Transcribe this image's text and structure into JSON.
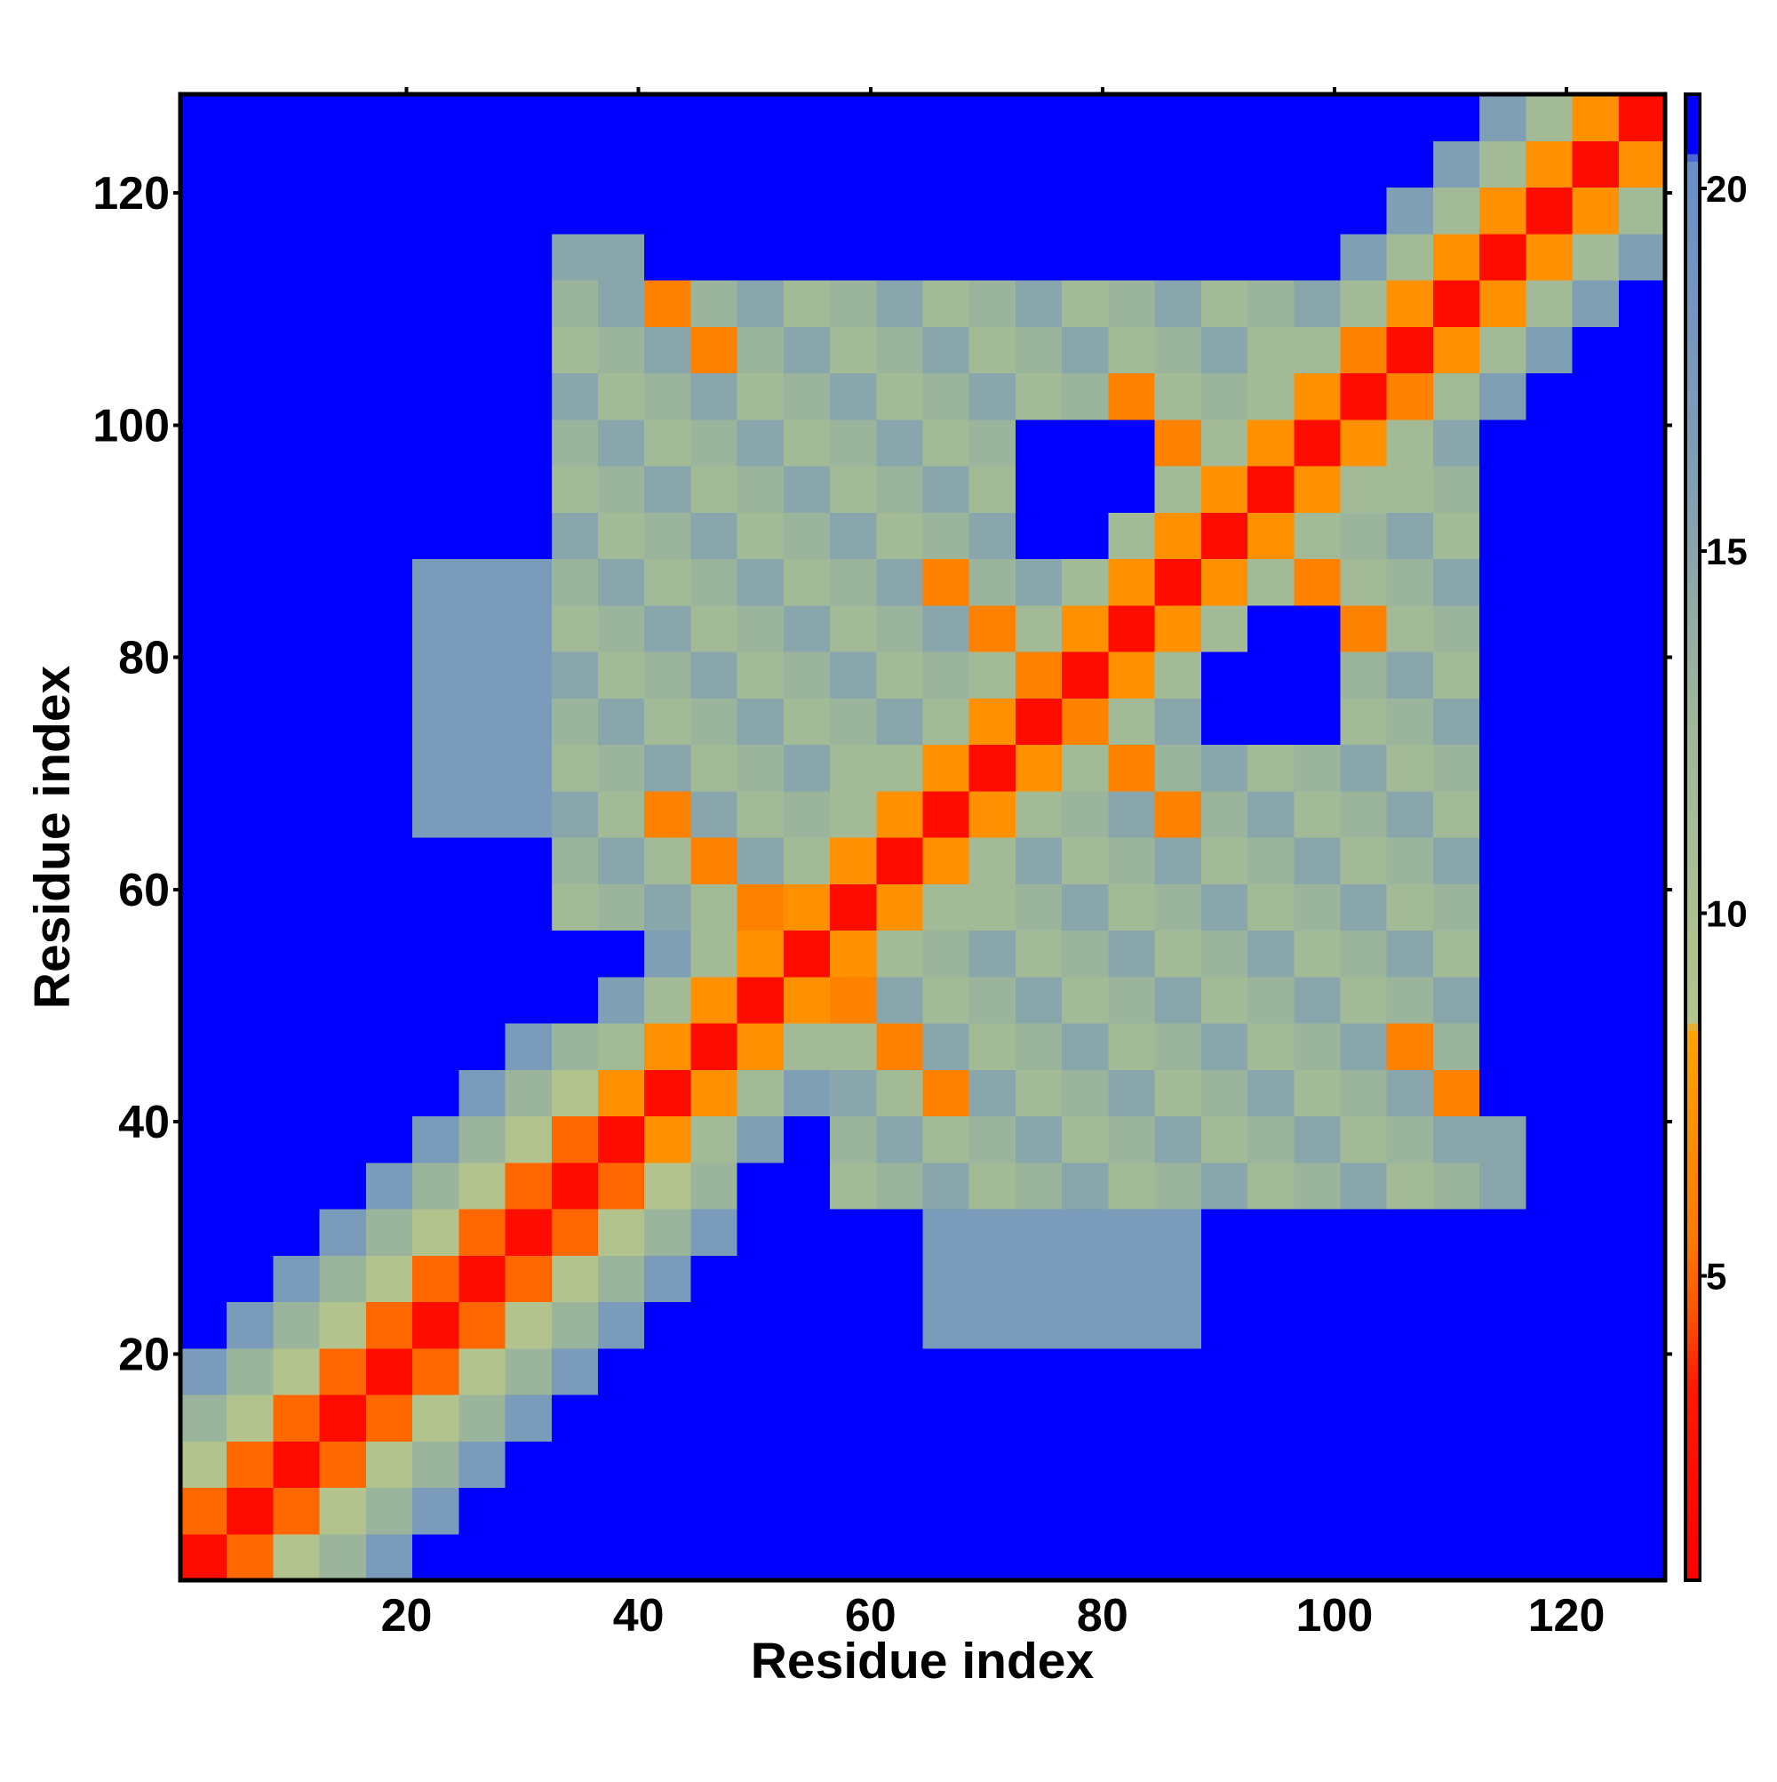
{
  "chart_data": {
    "type": "heatmap",
    "x_label": "Residue index",
    "y_label": "Residue index",
    "x": [
      2.5,
      6.5,
      10.5,
      14.5,
      18.5,
      22.5,
      26.5,
      30.5,
      34.5,
      38.5,
      42.5,
      46.5,
      50.5,
      54.5,
      58.5,
      62.5,
      66.5,
      70.5,
      74.5,
      78.5,
      82.5,
      86.5,
      90.5,
      94.5,
      98.5,
      102.5,
      106.5,
      110.5,
      114.5,
      118.5,
      122.5,
      126.5
    ],
    "y": [
      2.5,
      6.5,
      10.5,
      14.5,
      18.5,
      22.5,
      26.5,
      30.5,
      34.5,
      38.5,
      42.5,
      46.5,
      50.5,
      54.5,
      58.5,
      62.5,
      66.5,
      70.5,
      74.5,
      78.5,
      82.5,
      86.5,
      90.5,
      94.5,
      98.5,
      102.5,
      106.5,
      110.5,
      114.5,
      118.5,
      122.5,
      126.5
    ],
    "values": [
      [
        2,
        5,
        9,
        13,
        17,
        21,
        21,
        21,
        21,
        21,
        21,
        21,
        21,
        21,
        21,
        21,
        21,
        21,
        21,
        21,
        21,
        21,
        21,
        21,
        21,
        21,
        21,
        21,
        21,
        21,
        21,
        21
      ],
      [
        5,
        2,
        5,
        9,
        13,
        17,
        21,
        21,
        21,
        21,
        21,
        21,
        21,
        21,
        21,
        21,
        21,
        21,
        21,
        21,
        21,
        21,
        21,
        21,
        21,
        21,
        21,
        21,
        21,
        21,
        21,
        21
      ],
      [
        9,
        5,
        2,
        5,
        9,
        13,
        17,
        21,
        21,
        21,
        21,
        21,
        21,
        21,
        21,
        21,
        21,
        21,
        21,
        21,
        21,
        21,
        21,
        21,
        21,
        21,
        21,
        21,
        21,
        21,
        21,
        21
      ],
      [
        13,
        9,
        5,
        2,
        5,
        9,
        13,
        17,
        21,
        21,
        21,
        21,
        21,
        21,
        21,
        21,
        21,
        21,
        21,
        21,
        21,
        21,
        21,
        21,
        21,
        21,
        21,
        21,
        21,
        21,
        21,
        21
      ],
      [
        17,
        13,
        9,
        5,
        2,
        5,
        9,
        13,
        17,
        21,
        21,
        21,
        21,
        21,
        21,
        21,
        21,
        21,
        21,
        21,
        21,
        21,
        21,
        21,
        21,
        21,
        21,
        21,
        21,
        21,
        21,
        21
      ],
      [
        21,
        17,
        13,
        9,
        5,
        2,
        5,
        9,
        13,
        17,
        21,
        21,
        21,
        21,
        21,
        21,
        17,
        17,
        17,
        17,
        17,
        17,
        21,
        21,
        21,
        21,
        21,
        21,
        21,
        21,
        21,
        21
      ],
      [
        21,
        21,
        17,
        13,
        9,
        5,
        2,
        5,
        9,
        13,
        17,
        21,
        21,
        21,
        21,
        21,
        17,
        17,
        17,
        17,
        17,
        17,
        21,
        21,
        21,
        21,
        21,
        21,
        21,
        21,
        21,
        21
      ],
      [
        21,
        21,
        21,
        17,
        13,
        9,
        5,
        2,
        5,
        9,
        13,
        17,
        21,
        21,
        21,
        21,
        17,
        17,
        17,
        17,
        17,
        17,
        21,
        21,
        21,
        21,
        21,
        21,
        21,
        21,
        21,
        21
      ],
      [
        21,
        21,
        21,
        21,
        17,
        13,
        9,
        5,
        2,
        5,
        9,
        13,
        21,
        21,
        12,
        13,
        15,
        12,
        13,
        15,
        12,
        13,
        15,
        12,
        13,
        15,
        12,
        13,
        15,
        21,
        21,
        21
      ],
      [
        21,
        21,
        21,
        21,
        21,
        17,
        13,
        9,
        5,
        2,
        7,
        12,
        16,
        21,
        13,
        15,
        12,
        13,
        15,
        12,
        13,
        15,
        12,
        13,
        15,
        12,
        13,
        15,
        15,
        21,
        21,
        21
      ],
      [
        21,
        21,
        21,
        21,
        21,
        21,
        17,
        13,
        9,
        7,
        2,
        7,
        12,
        16,
        15,
        12,
        6,
        15,
        12,
        13,
        15,
        12,
        13,
        15,
        12,
        13,
        15,
        6,
        21,
        21,
        21,
        21
      ],
      [
        21,
        21,
        21,
        21,
        21,
        21,
        21,
        17,
        13,
        12,
        7,
        2,
        7,
        12,
        12,
        6,
        15,
        12,
        13,
        15,
        12,
        13,
        15,
        12,
        13,
        15,
        6,
        13,
        21,
        21,
        21,
        21
      ],
      [
        21,
        21,
        21,
        21,
        21,
        21,
        21,
        21,
        21,
        16,
        12,
        7,
        2,
        7,
        6,
        15,
        12,
        13,
        15,
        12,
        13,
        15,
        12,
        13,
        15,
        12,
        13,
        15,
        21,
        21,
        21,
        21
      ],
      [
        21,
        21,
        21,
        21,
        21,
        21,
        21,
        21,
        21,
        21,
        16,
        12,
        7,
        2,
        7,
        12,
        13,
        15,
        12,
        13,
        15,
        12,
        13,
        15,
        12,
        13,
        15,
        12,
        21,
        21,
        21,
        21
      ],
      [
        21,
        21,
        21,
        21,
        21,
        21,
        21,
        21,
        12,
        13,
        15,
        12,
        6,
        7,
        2,
        7,
        12,
        12,
        13,
        15,
        12,
        13,
        15,
        12,
        13,
        15,
        12,
        13,
        21,
        21,
        21,
        21
      ],
      [
        21,
        21,
        21,
        21,
        21,
        21,
        21,
        21,
        13,
        15,
        12,
        6,
        15,
        12,
        7,
        2,
        7,
        12,
        15,
        12,
        13,
        15,
        12,
        13,
        15,
        12,
        13,
        15,
        21,
        21,
        21,
        21
      ],
      [
        21,
        21,
        21,
        21,
        21,
        17,
        17,
        17,
        15,
        12,
        6,
        15,
        12,
        13,
        12,
        7,
        2,
        7,
        12,
        13,
        15,
        6,
        13,
        15,
        12,
        13,
        15,
        12,
        21,
        21,
        21,
        21
      ],
      [
        21,
        21,
        21,
        21,
        21,
        17,
        17,
        17,
        12,
        13,
        15,
        12,
        13,
        15,
        12,
        12,
        7,
        2,
        7,
        12,
        6,
        13,
        15,
        12,
        13,
        15,
        12,
        13,
        21,
        21,
        21,
        21
      ],
      [
        21,
        21,
        21,
        21,
        21,
        17,
        17,
        17,
        13,
        15,
        12,
        13,
        15,
        12,
        13,
        15,
        12,
        7,
        2,
        6,
        12,
        15,
        21,
        21,
        21,
        12,
        13,
        15,
        21,
        21,
        21,
        21
      ],
      [
        21,
        21,
        21,
        21,
        21,
        17,
        17,
        17,
        15,
        12,
        13,
        15,
        12,
        13,
        15,
        12,
        13,
        12,
        6,
        2,
        7,
        12,
        21,
        21,
        21,
        13,
        15,
        12,
        21,
        21,
        21,
        21
      ],
      [
        21,
        21,
        21,
        21,
        21,
        17,
        17,
        17,
        12,
        13,
        15,
        12,
        13,
        15,
        12,
        13,
        15,
        6,
        12,
        7,
        2,
        7,
        12,
        21,
        21,
        6,
        12,
        13,
        21,
        21,
        21,
        21
      ],
      [
        21,
        21,
        21,
        21,
        21,
        17,
        17,
        17,
        13,
        15,
        12,
        13,
        15,
        12,
        13,
        15,
        6,
        13,
        15,
        12,
        7,
        2,
        7,
        12,
        6,
        12,
        13,
        15,
        21,
        21,
        21,
        21
      ],
      [
        21,
        21,
        21,
        21,
        21,
        21,
        21,
        21,
        15,
        12,
        13,
        15,
        12,
        13,
        15,
        12,
        13,
        15,
        21,
        21,
        12,
        7,
        2,
        7,
        12,
        13,
        15,
        12,
        21,
        21,
        21,
        21
      ],
      [
        21,
        21,
        21,
        21,
        21,
        21,
        21,
        21,
        12,
        13,
        15,
        12,
        13,
        15,
        12,
        13,
        15,
        12,
        21,
        21,
        21,
        12,
        7,
        2,
        7,
        12,
        12,
        13,
        21,
        21,
        21,
        21
      ],
      [
        21,
        21,
        21,
        21,
        21,
        21,
        21,
        21,
        13,
        15,
        12,
        13,
        15,
        12,
        13,
        15,
        12,
        13,
        21,
        21,
        21,
        6,
        12,
        7,
        2,
        7,
        12,
        15,
        21,
        21,
        21,
        21
      ],
      [
        21,
        21,
        21,
        21,
        21,
        21,
        21,
        21,
        15,
        12,
        13,
        15,
        12,
        13,
        15,
        12,
        13,
        15,
        12,
        13,
        6,
        12,
        13,
        12,
        7,
        2,
        6,
        12,
        16,
        21,
        21,
        21
      ],
      [
        21,
        21,
        21,
        21,
        21,
        21,
        21,
        21,
        12,
        13,
        15,
        6,
        13,
        15,
        12,
        13,
        15,
        12,
        13,
        15,
        12,
        13,
        15,
        12,
        12,
        6,
        2,
        7,
        12,
        16,
        21,
        21
      ],
      [
        21,
        21,
        21,
        21,
        21,
        21,
        21,
        21,
        13,
        15,
        6,
        13,
        15,
        12,
        13,
        15,
        12,
        13,
        15,
        12,
        13,
        15,
        12,
        13,
        15,
        12,
        7,
        2,
        7,
        12,
        16,
        21
      ],
      [
        21,
        21,
        21,
        21,
        21,
        21,
        21,
        21,
        15,
        15,
        21,
        21,
        21,
        21,
        21,
        21,
        21,
        21,
        21,
        21,
        21,
        21,
        21,
        21,
        21,
        16,
        12,
        7,
        2,
        7,
        12,
        16
      ],
      [
        21,
        21,
        21,
        21,
        21,
        21,
        21,
        21,
        21,
        21,
        21,
        21,
        21,
        21,
        21,
        21,
        21,
        21,
        21,
        21,
        21,
        21,
        21,
        21,
        21,
        21,
        16,
        12,
        7,
        2,
        7,
        12
      ],
      [
        21,
        21,
        21,
        21,
        21,
        21,
        21,
        21,
        21,
        21,
        21,
        21,
        21,
        21,
        21,
        21,
        21,
        21,
        21,
        21,
        21,
        21,
        21,
        21,
        21,
        21,
        21,
        16,
        12,
        7,
        2,
        7
      ],
      [
        21,
        21,
        21,
        21,
        21,
        21,
        21,
        21,
        21,
        21,
        21,
        21,
        21,
        21,
        21,
        21,
        21,
        21,
        21,
        21,
        21,
        21,
        21,
        21,
        21,
        21,
        21,
        21,
        16,
        12,
        7,
        2
      ]
    ],
    "cell_size": 4,
    "xlim": [
      0.5,
      128.5
    ],
    "ylim": [
      0.5,
      128.5
    ],
    "xticks": [
      20,
      40,
      60,
      80,
      100,
      120
    ],
    "yticks": [
      20,
      40,
      60,
      80,
      100,
      120
    ],
    "zlim": [
      0.8,
      21.3
    ],
    "zticks": [
      5,
      10,
      15,
      20
    ],
    "colorscale": [
      [
        0.8,
        "#ff0000"
      ],
      [
        3.5,
        "#ff1a00"
      ],
      [
        4.5,
        "#ff5500"
      ],
      [
        5.5,
        "#ff7a00"
      ],
      [
        8.4,
        "#ffa500"
      ],
      [
        8.5,
        "#b4c48c"
      ],
      [
        12.5,
        "#a0b898"
      ],
      [
        16,
        "#7f9fb4"
      ],
      [
        20.4,
        "#6a8ec8"
      ],
      [
        20.5,
        "#0000ff"
      ],
      [
        21.3,
        "#0000ff"
      ]
    ],
    "grid": false
  }
}
